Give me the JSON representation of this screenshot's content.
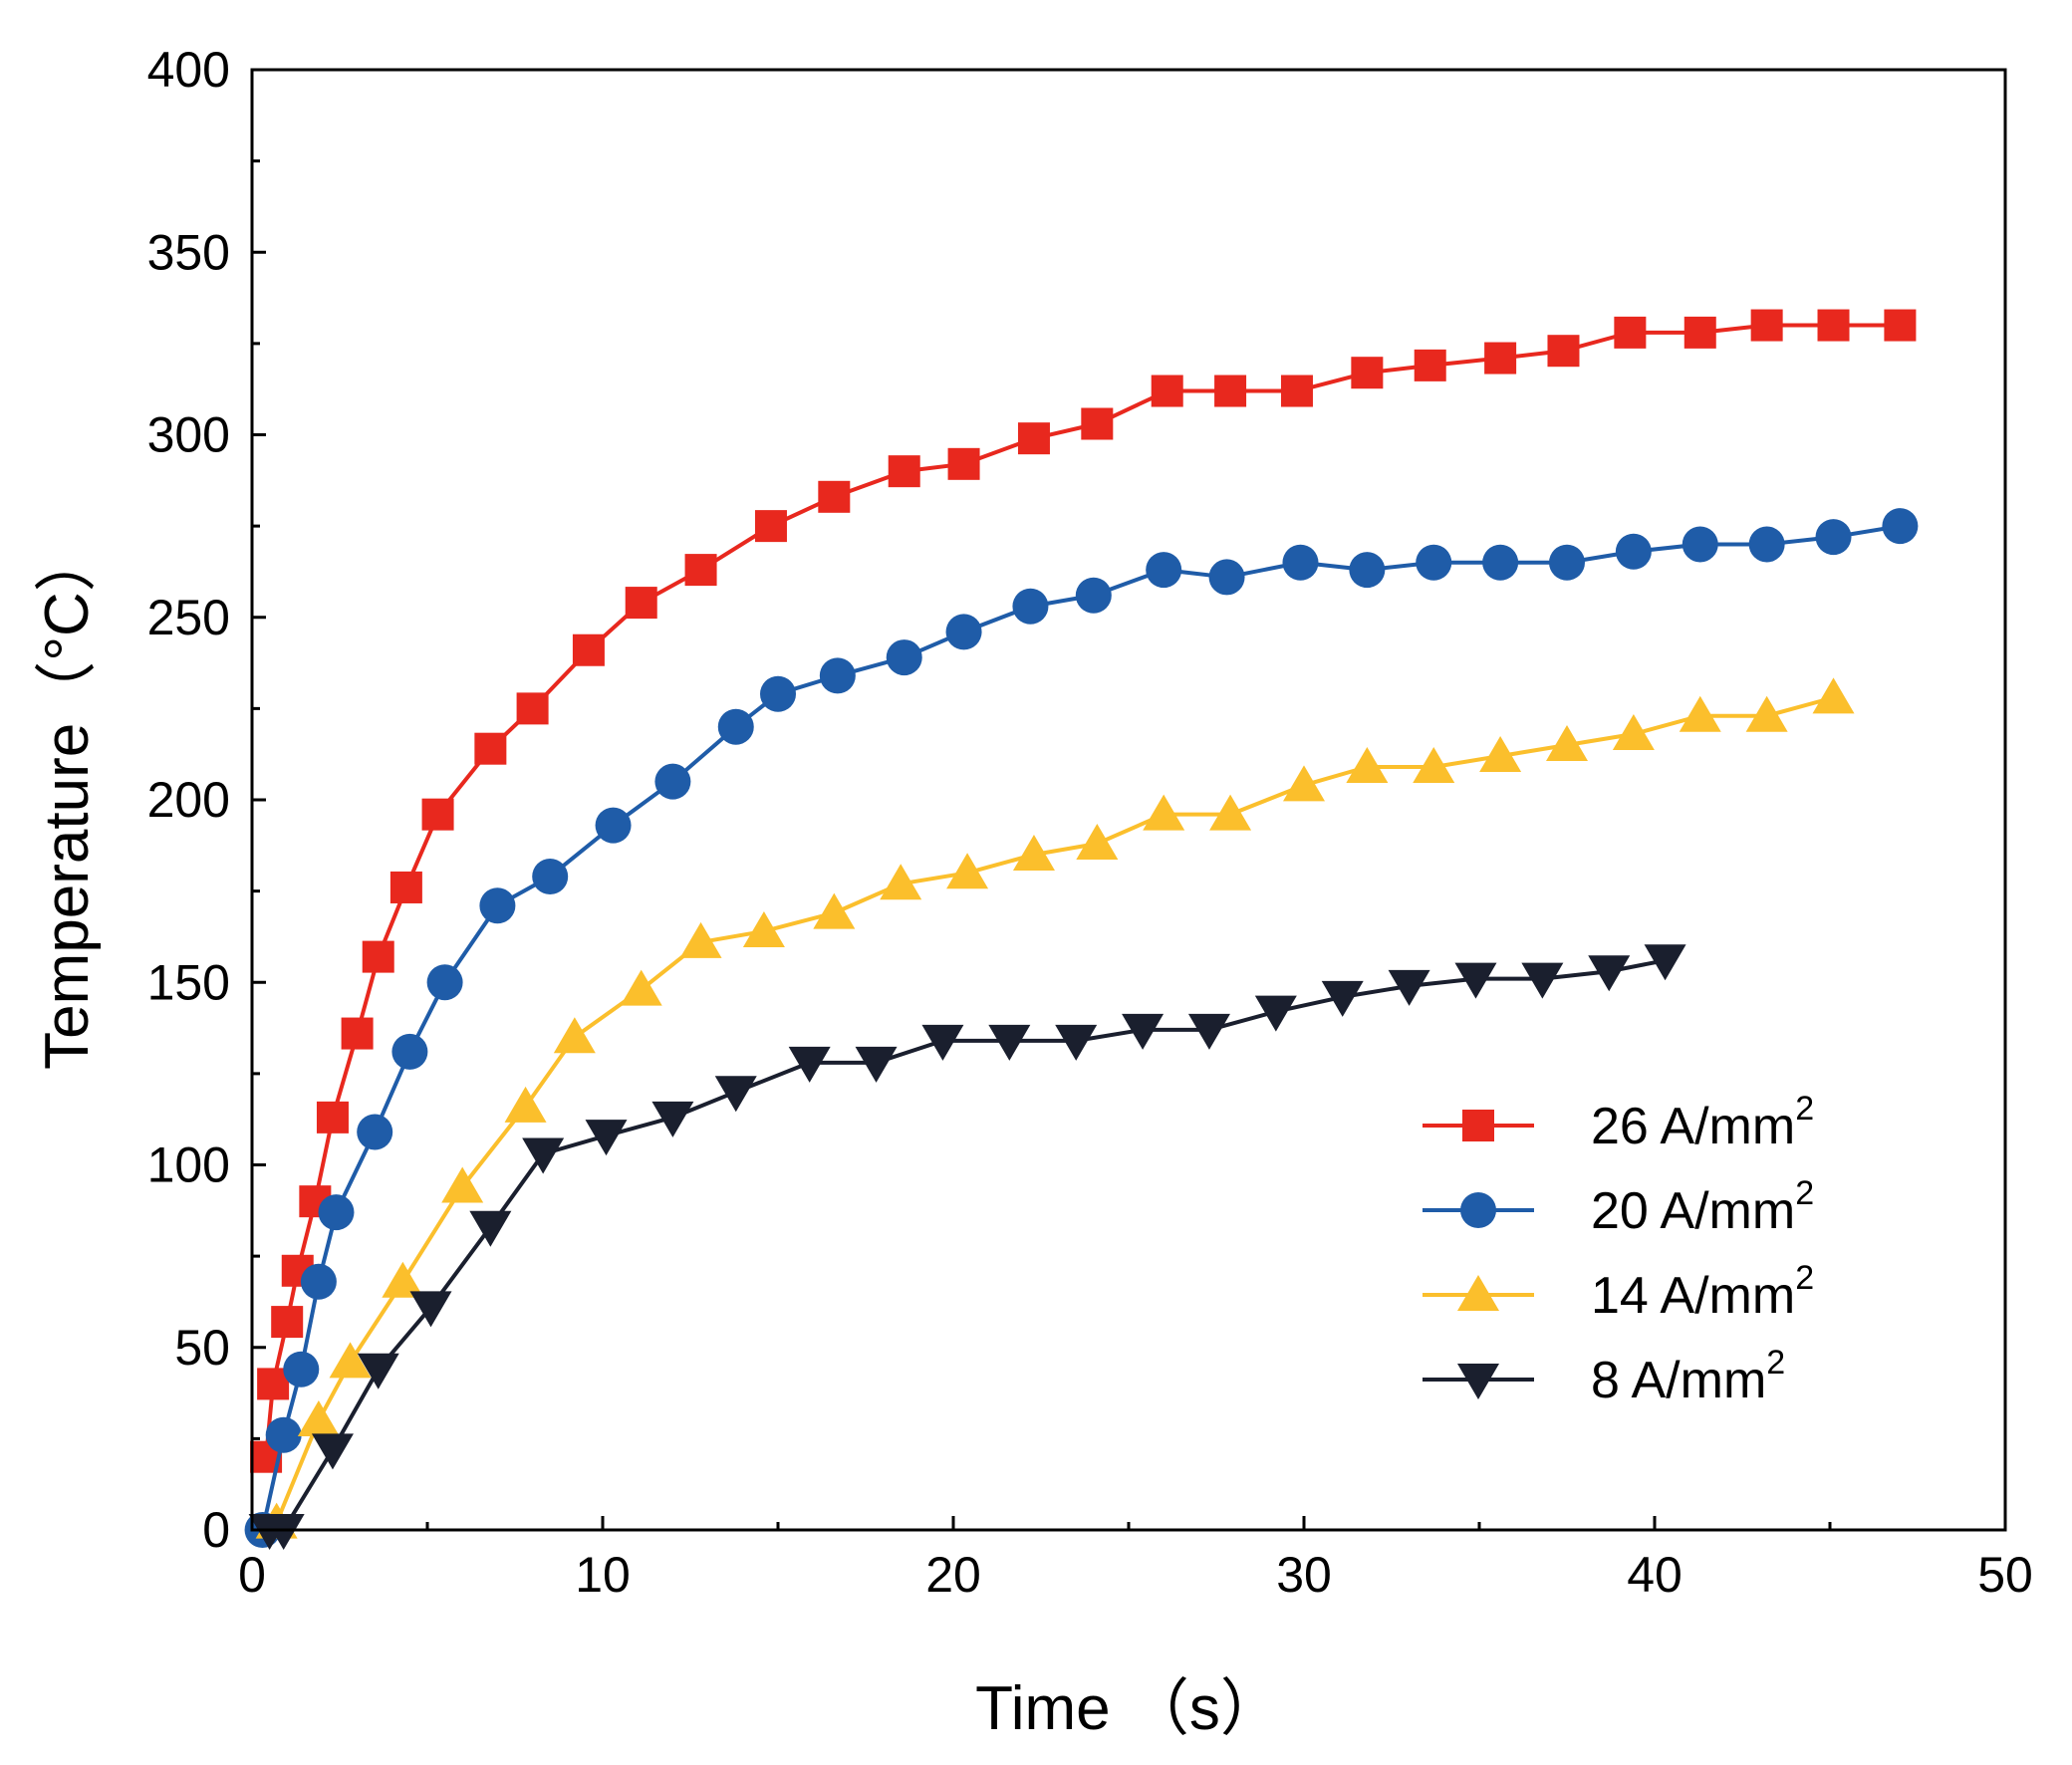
{
  "chart_data": {
    "type": "line",
    "xlabel": "Time （s）",
    "ylabel": "Temperature（°C）",
    "xlim": [
      0,
      50
    ],
    "ylim": [
      0,
      400
    ],
    "xticks": [
      "0",
      "10",
      "20",
      "30",
      "40",
      "50"
    ],
    "yticks": [
      "0",
      "50",
      "100",
      "150",
      "200",
      "250",
      "300",
      "350",
      "400"
    ],
    "grid": false,
    "legend_position": "lower-right",
    "series": [
      {
        "name": "26  A/mm",
        "name_sup": "2",
        "color": "#e8281e",
        "marker": "square",
        "x": [
          0.4,
          0.6,
          1.0,
          1.3,
          1.8,
          2.3,
          3.0,
          3.6,
          4.4,
          5.3,
          6.8,
          8.0,
          9.6,
          11.1,
          12.8,
          14.8,
          16.6,
          18.6,
          20.3,
          22.3,
          24.1,
          26.1,
          27.9,
          29.8,
          31.8,
          33.6,
          35.6,
          37.4,
          39.3,
          41.3,
          43.2,
          45.1,
          47.0
        ],
        "y": [
          20,
          40,
          57,
          71,
          90,
          113,
          136,
          157,
          176,
          196,
          214,
          225,
          241,
          254,
          263,
          275,
          283,
          290,
          292,
          299,
          303,
          312,
          312,
          312,
          317,
          319,
          321,
          323,
          328,
          328,
          330,
          330,
          330
        ]
      },
      {
        "name": "20  A/mm",
        "name_sup": "2",
        "color": "#1f5ca8",
        "marker": "circle",
        "x": [
          0.3,
          0.9,
          1.4,
          1.9,
          2.4,
          3.5,
          4.5,
          5.5,
          7.0,
          8.5,
          10.3,
          12.0,
          13.8,
          15.0,
          16.7,
          18.6,
          20.3,
          22.2,
          24.0,
          26.0,
          27.8,
          29.9,
          31.8,
          33.7,
          35.6,
          37.5,
          39.4,
          41.3,
          43.2,
          45.1,
          47.0
        ],
        "y": [
          0,
          26,
          44,
          68,
          87,
          109,
          131,
          150,
          171,
          179,
          193,
          205,
          220,
          229,
          234,
          239,
          246,
          253,
          256,
          263,
          261,
          265,
          263,
          265,
          265,
          265,
          268,
          270,
          270,
          272,
          275
        ]
      },
      {
        "name": "14  A/mm",
        "name_sup": "2",
        "color": "#fbbf2c",
        "marker": "triangle-up",
        "x": [
          0.7,
          1.9,
          2.8,
          4.3,
          6.0,
          7.8,
          9.2,
          11.1,
          12.8,
          14.6,
          16.6,
          18.5,
          20.4,
          22.3,
          24.1,
          26.0,
          27.9,
          30.0,
          31.8,
          33.7,
          35.6,
          37.5,
          39.4,
          41.3,
          43.2,
          45.1
        ],
        "y": [
          2,
          30,
          46,
          68,
          94,
          116,
          135,
          148,
          161,
          164,
          169,
          177,
          180,
          185,
          188,
          196,
          196,
          204,
          209,
          209,
          212,
          215,
          218,
          223,
          223,
          228
        ]
      },
      {
        "name": "8  A/mm",
        "name_sup": "2",
        "color": "#1a1f2e",
        "marker": "triangle-down",
        "x": [
          0.5,
          0.9,
          2.3,
          3.6,
          5.1,
          6.8,
          8.3,
          10.1,
          12.0,
          13.8,
          15.9,
          17.8,
          19.7,
          21.6,
          23.5,
          25.4,
          27.3,
          29.2,
          31.1,
          33.0,
          34.9,
          36.8,
          38.7,
          40.3
        ],
        "y": [
          0,
          0,
          22,
          44,
          61,
          83,
          103,
          108,
          113,
          120,
          128,
          128,
          134,
          134,
          134,
          137,
          137,
          142,
          146,
          149,
          151,
          151,
          153,
          156
        ]
      }
    ]
  }
}
